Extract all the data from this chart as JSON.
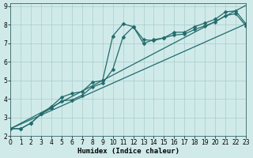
{
  "bg_color": "#d0eaea",
  "line_color": "#236b6b",
  "grid_color": "#a8cccc",
  "xlabel": "Humidex (Indice chaleur)",
  "xlim": [
    0,
    23
  ],
  "ylim": [
    2,
    9.15
  ],
  "xticks": [
    0,
    1,
    2,
    3,
    4,
    5,
    6,
    7,
    8,
    9,
    10,
    11,
    12,
    13,
    14,
    15,
    16,
    17,
    18,
    19,
    20,
    21,
    22,
    23
  ],
  "yticks": [
    2,
    3,
    4,
    5,
    6,
    7,
    8,
    9
  ],
  "series": [
    {
      "x": [
        0,
        1,
        2,
        3,
        4,
        5,
        6,
        7,
        8,
        9,
        10,
        11,
        12,
        13,
        14,
        15,
        16,
        17,
        18,
        19,
        20,
        21,
        22,
        23
      ],
      "y": [
        2.4,
        2.4,
        2.7,
        3.2,
        3.6,
        4.1,
        4.3,
        4.4,
        4.9,
        5.0,
        7.4,
        8.05,
        7.9,
        7.0,
        7.2,
        7.3,
        7.6,
        7.6,
        7.9,
        8.1,
        8.3,
        8.7,
        8.75,
        8.05
      ],
      "marker": "D",
      "markersize": 2.5,
      "linewidth": 0.9,
      "has_marker": true
    },
    {
      "x": [
        0,
        1,
        2,
        3,
        4,
        5,
        6,
        7,
        8,
        9,
        10,
        11,
        12,
        13,
        14,
        15,
        16,
        17,
        18,
        19,
        20,
        21,
        22,
        23
      ],
      "y": [
        2.4,
        2.4,
        2.7,
        3.2,
        3.5,
        3.9,
        3.95,
        4.2,
        4.65,
        4.85,
        5.6,
        7.35,
        7.9,
        7.2,
        7.15,
        7.3,
        7.45,
        7.5,
        7.75,
        7.95,
        8.15,
        8.5,
        8.6,
        7.95
      ],
      "marker": "D",
      "markersize": 2.5,
      "linewidth": 0.9,
      "has_marker": true
    },
    {
      "x": [
        0,
        23
      ],
      "y": [
        2.4,
        8.05
      ],
      "marker": null,
      "markersize": 0,
      "linewidth": 0.9,
      "has_marker": false
    },
    {
      "x": [
        0,
        23
      ],
      "y": [
        2.4,
        9.05
      ],
      "marker": null,
      "markersize": 0,
      "linewidth": 0.9,
      "has_marker": false
    }
  ],
  "tick_labelsize": 5.5,
  "xlabel_fontsize": 6.5
}
